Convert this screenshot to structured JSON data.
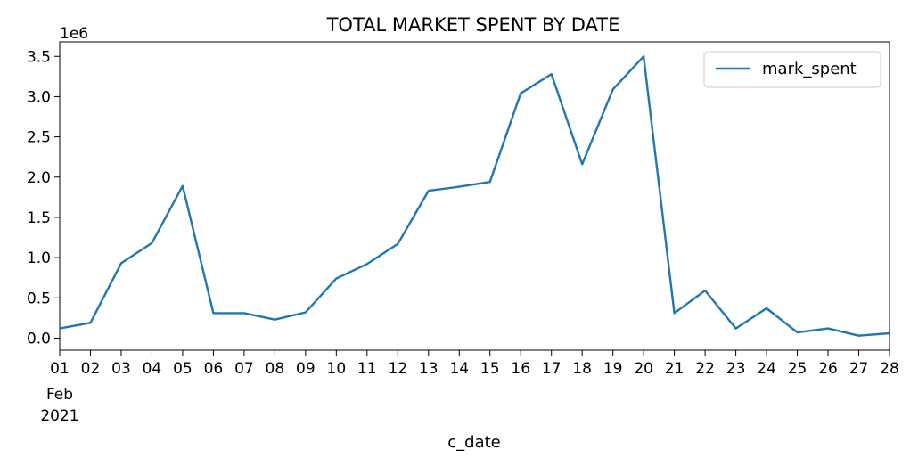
{
  "chart_data": {
    "type": "line",
    "title": "TOTAL MARKET SPENT BY DATE",
    "xlabel": "c_date",
    "ylabel": "",
    "y_offset_label": "1e6",
    "x": [
      "01",
      "02",
      "03",
      "04",
      "05",
      "06",
      "07",
      "08",
      "09",
      "10",
      "11",
      "12",
      "13",
      "14",
      "15",
      "16",
      "17",
      "18",
      "19",
      "20",
      "21",
      "22",
      "23",
      "24",
      "25",
      "26",
      "27",
      "28"
    ],
    "x_month_label": "Feb",
    "x_year_label": "2021",
    "series": [
      {
        "name": "mark_spent",
        "color": "#1f77b4",
        "values": [
          0.12,
          0.19,
          0.93,
          1.18,
          1.89,
          0.31,
          0.31,
          0.23,
          0.32,
          0.74,
          0.92,
          1.17,
          1.83,
          1.88,
          1.94,
          3.04,
          3.28,
          2.16,
          3.09,
          3.5,
          0.31,
          0.59,
          0.12,
          0.37,
          0.07,
          0.12,
          0.03,
          0.06
        ]
      }
    ],
    "yticks": [
      "0.0",
      "0.5",
      "1.0",
      "1.5",
      "2.0",
      "2.5",
      "3.0",
      "3.5"
    ],
    "ylim": [
      -0.15,
      3.68
    ],
    "grid": false,
    "legend_position": "top-right"
  }
}
